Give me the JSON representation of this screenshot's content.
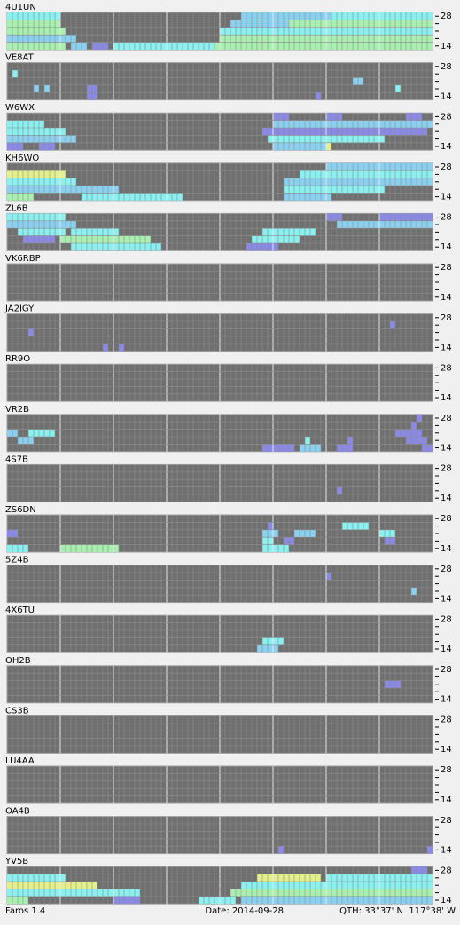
{
  "colors": [
    "#8a8ae6",
    "#8ad0f0",
    "#8af0f0",
    "#a8f0b0",
    "#e6f08a"
  ],
  "bands": [
    "28",
    "14"
  ],
  "panels": [
    {
      "call": "4U1UN",
      "runs": [
        [
          0,
          0,
          9,
          3
        ],
        [
          0,
          44,
          60,
          2
        ],
        [
          0,
          61,
          79,
          3
        ],
        [
          1,
          0,
          9,
          4
        ],
        [
          1,
          42,
          52,
          2
        ],
        [
          1,
          53,
          79,
          4
        ],
        [
          2,
          0,
          10,
          4
        ],
        [
          2,
          40,
          79,
          3
        ],
        [
          3,
          0,
          12,
          2
        ],
        [
          3,
          40,
          79,
          4
        ],
        [
          4,
          0,
          10,
          4
        ],
        [
          4,
          12,
          14,
          2
        ],
        [
          4,
          16,
          18,
          1
        ],
        [
          4,
          20,
          38,
          3
        ],
        [
          4,
          39,
          79,
          4
        ]
      ]
    },
    {
      "call": "VE8AT",
      "runs": [
        [
          1,
          1,
          1,
          3
        ],
        [
          3,
          5,
          5,
          2
        ],
        [
          3,
          7,
          7,
          2
        ],
        [
          3,
          15,
          16,
          1
        ],
        [
          4,
          15,
          16,
          1
        ],
        [
          2,
          65,
          66,
          2
        ],
        [
          3,
          73,
          73,
          3
        ],
        [
          4,
          58,
          58,
          1
        ]
      ]
    },
    {
      "call": "W6WX",
      "runs": [
        [
          0,
          50,
          52,
          1
        ],
        [
          0,
          60,
          62,
          1
        ],
        [
          0,
          75,
          77,
          1
        ],
        [
          1,
          0,
          6,
          3
        ],
        [
          1,
          50,
          79,
          2
        ],
        [
          2,
          0,
          10,
          3
        ],
        [
          2,
          48,
          78,
          1
        ],
        [
          3,
          0,
          12,
          2
        ],
        [
          3,
          49,
          70,
          3
        ],
        [
          4,
          0,
          2,
          1
        ],
        [
          4,
          6,
          8,
          1
        ],
        [
          4,
          50,
          59,
          2
        ],
        [
          4,
          60,
          60,
          5
        ]
      ]
    },
    {
      "call": "KH6WO",
      "runs": [
        [
          0,
          60,
          79,
          2
        ],
        [
          1,
          0,
          10,
          5
        ],
        [
          1,
          55,
          79,
          3
        ],
        [
          2,
          0,
          12,
          3
        ],
        [
          2,
          52,
          79,
          2
        ],
        [
          3,
          0,
          20,
          2
        ],
        [
          3,
          52,
          70,
          3
        ],
        [
          4,
          0,
          4,
          4
        ],
        [
          4,
          14,
          32,
          3
        ],
        [
          4,
          52,
          60,
          2
        ]
      ]
    },
    {
      "call": "ZL6B",
      "runs": [
        [
          0,
          0,
          10,
          3
        ],
        [
          0,
          60,
          62,
          1
        ],
        [
          0,
          70,
          79,
          1
        ],
        [
          1,
          0,
          12,
          2
        ],
        [
          1,
          62,
          79,
          2
        ],
        [
          2,
          2,
          10,
          3
        ],
        [
          2,
          12,
          20,
          3
        ],
        [
          2,
          48,
          57,
          3
        ],
        [
          3,
          3,
          8,
          1
        ],
        [
          3,
          10,
          26,
          4
        ],
        [
          3,
          46,
          54,
          3
        ],
        [
          4,
          12,
          28,
          3
        ],
        [
          4,
          45,
          50,
          1
        ]
      ]
    },
    {
      "call": "VK6RBP",
      "runs": []
    },
    {
      "call": "JA2IGY",
      "runs": [
        [
          1,
          72,
          72,
          1
        ],
        [
          2,
          4,
          4,
          1
        ],
        [
          4,
          18,
          18,
          1
        ],
        [
          4,
          21,
          21,
          1
        ]
      ]
    },
    {
      "call": "RR9O",
      "runs": []
    },
    {
      "call": "VR2B",
      "runs": [
        [
          0,
          77,
          77,
          1
        ],
        [
          1,
          76,
          76,
          1
        ],
        [
          2,
          0,
          1,
          2
        ],
        [
          2,
          4,
          8,
          3
        ],
        [
          2,
          73,
          77,
          1
        ],
        [
          3,
          2,
          4,
          2
        ],
        [
          3,
          56,
          56,
          3
        ],
        [
          3,
          64,
          64,
          1
        ],
        [
          3,
          75,
          78,
          1
        ],
        [
          4,
          48,
          53,
          1
        ],
        [
          4,
          55,
          58,
          2
        ],
        [
          4,
          62,
          64,
          1
        ],
        [
          4,
          78,
          79,
          1
        ]
      ]
    },
    {
      "call": "4S7B",
      "runs": [
        [
          3,
          62,
          62,
          1
        ]
      ]
    },
    {
      "call": "ZS6DN",
      "runs": [
        [
          1,
          49,
          49,
          1
        ],
        [
          1,
          63,
          67,
          3
        ],
        [
          2,
          0,
          1,
          1
        ],
        [
          2,
          48,
          50,
          2
        ],
        [
          2,
          54,
          57,
          2
        ],
        [
          2,
          70,
          72,
          3
        ],
        [
          3,
          48,
          49,
          3
        ],
        [
          3,
          52,
          53,
          1
        ],
        [
          3,
          71,
          72,
          1
        ],
        [
          4,
          0,
          3,
          3
        ],
        [
          4,
          10,
          20,
          4
        ],
        [
          4,
          48,
          52,
          3
        ]
      ]
    },
    {
      "call": "5Z4B",
      "runs": [
        [
          1,
          60,
          60,
          1
        ],
        [
          3,
          76,
          76,
          2
        ]
      ]
    },
    {
      "call": "4X6TU",
      "runs": [
        [
          3,
          48,
          51,
          3
        ],
        [
          4,
          47,
          50,
          2
        ]
      ]
    },
    {
      "call": "OH2B",
      "runs": [
        [
          2,
          71,
          73,
          1
        ]
      ]
    },
    {
      "call": "CS3B",
      "runs": []
    },
    {
      "call": "LU4AA",
      "runs": []
    },
    {
      "call": "OA4B",
      "runs": [
        [
          4,
          51,
          51,
          1
        ],
        [
          4,
          79,
          79,
          1
        ]
      ]
    },
    {
      "call": "YV5B",
      "runs": [
        [
          0,
          76,
          78,
          1
        ],
        [
          1,
          0,
          10,
          3
        ],
        [
          1,
          47,
          58,
          5
        ],
        [
          1,
          60,
          79,
          3
        ],
        [
          2,
          0,
          16,
          5
        ],
        [
          2,
          44,
          79,
          3
        ],
        [
          3,
          0,
          24,
          3
        ],
        [
          3,
          42,
          79,
          4
        ],
        [
          4,
          0,
          3,
          4
        ],
        [
          4,
          20,
          24,
          1
        ],
        [
          4,
          36,
          42,
          3
        ],
        [
          4,
          44,
          79,
          2
        ]
      ]
    }
  ],
  "footer": {
    "app": "Faros 1.4",
    "date": "Date: 2014-09-28",
    "qth": "QTH: 33°37' N  117°38' W"
  }
}
